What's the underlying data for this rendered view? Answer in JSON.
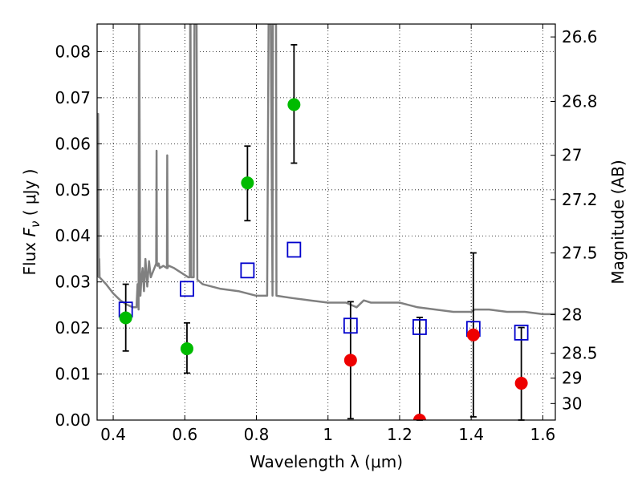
{
  "chart_data": {
    "type": "scatter",
    "xlabel": "Wavelength  λ (μm)",
    "ylabel": "Flux  F_ν  ( μJy )",
    "ylabel_right": "Magnitude (AB)",
    "xlim": [
      0.355,
      1.635
    ],
    "ylim": [
      0.0,
      0.086
    ],
    "grid": true,
    "x_ticks": [
      0.4,
      0.6,
      0.8,
      1.0,
      1.2,
      1.4,
      1.6
    ],
    "x_tick_labels": [
      "0.4",
      "0.6",
      "0.8",
      "1",
      "1.2",
      "1.4",
      "1.6"
    ],
    "y_ticks": [
      0.0,
      0.01,
      0.02,
      0.03,
      0.04,
      0.05,
      0.06,
      0.07,
      0.08
    ],
    "y_tick_labels": [
      "0.00",
      "0.01",
      "0.02",
      "0.03",
      "0.04",
      "0.05",
      "0.06",
      "0.07",
      "0.08"
    ],
    "right_ticks": [
      {
        "label": "26.6",
        "flux": 0.0832
      },
      {
        "label": "26.8",
        "flux": 0.0692
      },
      {
        "label": "27",
        "flux": 0.0575
      },
      {
        "label": "27.2",
        "flux": 0.0479
      },
      {
        "label": "27.5",
        "flux": 0.0363
      },
      {
        "label": "28",
        "flux": 0.0229
      },
      {
        "label": "28.5",
        "flux": 0.0145
      },
      {
        "label": "29",
        "flux": 0.0091
      },
      {
        "label": "30",
        "flux": 0.0036
      }
    ],
    "series": [
      {
        "kind": "sed_model_line",
        "color": "#808080",
        "x": [
          0.355,
          0.358,
          0.36,
          0.361,
          0.362,
          0.38,
          0.4,
          0.42,
          0.44,
          0.455,
          0.465,
          0.468,
          0.471,
          0.472,
          0.473,
          0.475,
          0.476,
          0.478,
          0.482,
          0.486,
          0.49,
          0.495,
          0.5,
          0.505,
          0.51,
          0.515,
          0.52,
          0.521,
          0.522,
          0.524,
          0.527,
          0.53,
          0.54,
          0.55,
          0.551,
          0.552,
          0.554,
          0.556,
          0.57,
          0.6,
          0.61,
          0.614,
          0.615,
          0.616,
          0.618,
          0.625,
          0.627,
          0.628,
          0.63,
          0.633,
          0.635,
          0.65,
          0.7,
          0.75,
          0.8,
          0.83,
          0.834,
          0.835,
          0.84,
          0.845,
          0.846,
          0.85,
          0.855,
          0.856,
          0.9,
          0.95,
          1.0,
          1.05,
          1.08,
          1.1,
          1.12,
          1.15,
          1.2,
          1.25,
          1.3,
          1.35,
          1.4,
          1.41,
          1.45,
          1.5,
          1.55,
          1.6,
          1.635
        ],
        "y": [
          0.031,
          0.0665,
          0.031,
          0.035,
          0.031,
          0.0295,
          0.0275,
          0.026,
          0.025,
          0.0245,
          0.0245,
          0.0295,
          0.024,
          0.086,
          0.086,
          0.029,
          0.027,
          0.03,
          0.033,
          0.028,
          0.035,
          0.029,
          0.0345,
          0.031,
          0.032,
          0.033,
          0.034,
          0.0585,
          0.034,
          0.0335,
          0.034,
          0.033,
          0.0335,
          0.033,
          0.0575,
          0.033,
          0.0335,
          0.0335,
          0.033,
          0.0315,
          0.031,
          0.031,
          0.086,
          0.086,
          0.031,
          0.031,
          0.086,
          0.086,
          0.086,
          0.086,
          0.0305,
          0.0295,
          0.0285,
          0.028,
          0.027,
          0.027,
          0.086,
          0.086,
          0.086,
          0.027,
          0.086,
          0.086,
          0.086,
          0.027,
          0.0265,
          0.026,
          0.0255,
          0.0255,
          0.0245,
          0.026,
          0.0255,
          0.0255,
          0.0255,
          0.0245,
          0.024,
          0.0235,
          0.0235,
          0.024,
          0.024,
          0.0235,
          0.0235,
          0.023,
          0.023
        ]
      },
      {
        "kind": "model_photometry",
        "marker": "open-square",
        "color": "#0000cc",
        "x": [
          0.435,
          0.606,
          0.775,
          0.905,
          1.063,
          1.256,
          1.406,
          1.54
        ],
        "y": [
          0.024,
          0.0285,
          0.0325,
          0.037,
          0.0205,
          0.0202,
          0.0198,
          0.019
        ]
      },
      {
        "kind": "detections",
        "marker": "filled-circle",
        "color": "#00bb00",
        "x": [
          0.435,
          0.606,
          0.775,
          0.905
        ],
        "y": [
          0.0222,
          0.0155,
          0.0515,
          0.0685
        ],
        "err_low": [
          0.015,
          0.0102,
          0.0433,
          0.0558
        ],
        "err_high": [
          0.0295,
          0.0211,
          0.0595,
          0.0815
        ]
      },
      {
        "kind": "non_detections",
        "marker": "filled-circle",
        "color": "#ee0000",
        "x": [
          1.063,
          1.256,
          1.406,
          1.54
        ],
        "y": [
          0.013,
          0.0,
          0.0185,
          0.008
        ],
        "err_low": [
          0.0003,
          0.0,
          0.0007,
          0.0
        ],
        "err_high": [
          0.0257,
          0.0223,
          0.0363,
          0.0201
        ]
      }
    ]
  }
}
